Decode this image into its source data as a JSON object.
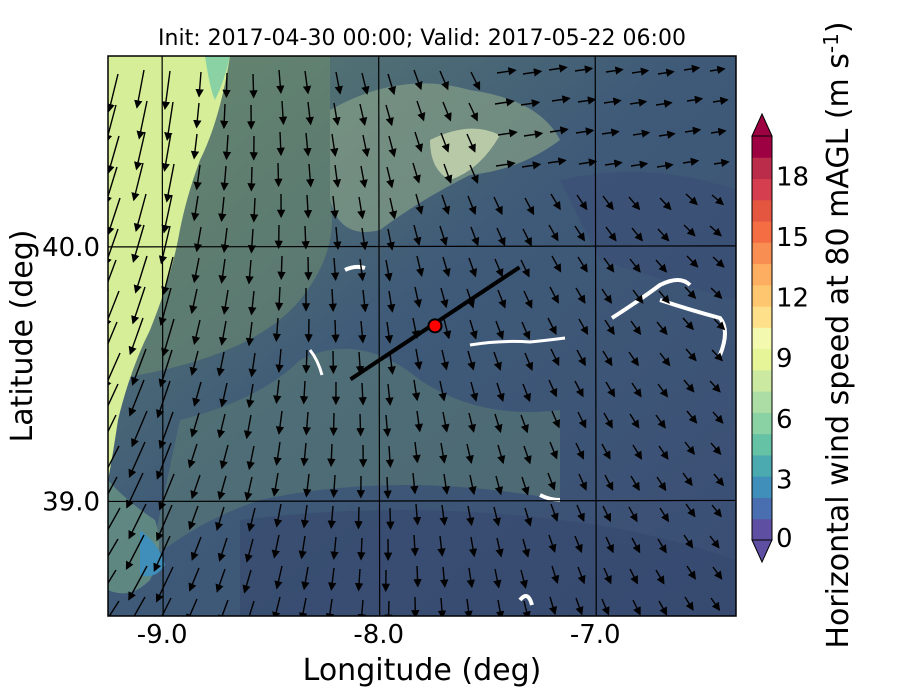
{
  "title": "Init: 2017-04-30 00:00; Valid: 2017-05-22 06:00",
  "xlabel": "Longitude (deg)",
  "ylabel": "Latitude (deg)",
  "x_ticks": [
    "-9.0",
    "-8.0",
    "-7.0"
  ],
  "y_ticks": [
    "40.0",
    "39.0"
  ],
  "colorbar": {
    "label": "Horizontal wind speed at 80 mAGL (m s",
    "label_sup": "-1",
    "label_end": ")",
    "tick_labels": [
      "0",
      "3",
      "6",
      "9",
      "12",
      "15",
      "18"
    ],
    "range": [
      0,
      20
    ],
    "extend": "both",
    "colors": [
      "#5e4fa2",
      "#4a6fb0",
      "#3f8fba",
      "#4aaab0",
      "#66c2a5",
      "#8ad2a4",
      "#abdda4",
      "#cbe9a0",
      "#e6f598",
      "#f4f9b0",
      "#fee08b",
      "#fdc66f",
      "#fdae61",
      "#f98e52",
      "#f46d43",
      "#e4563f",
      "#d53e4f",
      "#bb2b4a",
      "#9e0142"
    ]
  },
  "map": {
    "lon_range": [
      -9.25,
      -6.35
    ],
    "lat_range": [
      38.55,
      40.75
    ],
    "grid": true,
    "marker": {
      "lon": -7.74,
      "lat": 39.69,
      "color": "#ff0000"
    },
    "transect": {
      "start": [
        -8.13,
        39.48
      ],
      "end": [
        -7.35,
        39.92
      ]
    },
    "coast_colors": {
      "sea": "#d6ee98",
      "land_low": "#4f7479",
      "land_mid": "#6f8f6e",
      "land_high": "#a9bf8a",
      "dark": "#34476d"
    }
  }
}
